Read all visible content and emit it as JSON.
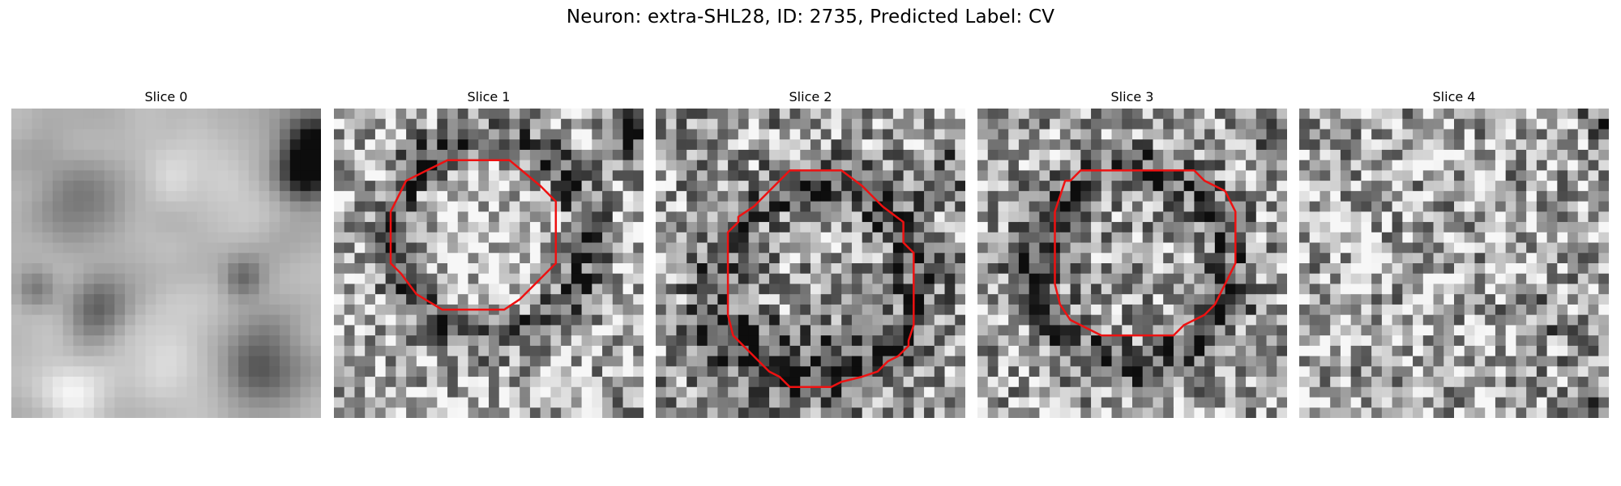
{
  "figure": {
    "title": "Neuron: extra-SHL28, ID: 2735, Predicted Label: CV"
  },
  "panels": [
    {
      "title": "Slice 0",
      "has_contour": false
    },
    {
      "title": "Slice 1",
      "has_contour": true
    },
    {
      "title": "Slice 2",
      "has_contour": true
    },
    {
      "title": "Slice 3",
      "has_contour": true
    },
    {
      "title": "Slice 4",
      "has_contour": false
    }
  ],
  "colors": {
    "contour": "#ee1111",
    "background": "#ffffff"
  },
  "image": {
    "colormap": "grayscale",
    "grid_resolution": 30
  }
}
